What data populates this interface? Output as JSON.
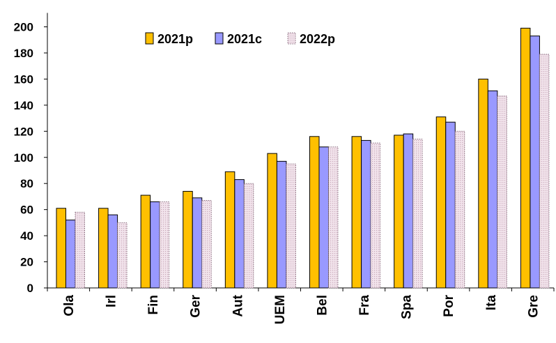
{
  "chart_data": {
    "type": "bar",
    "title": "",
    "xlabel": "",
    "ylabel": "",
    "ylim": [
      0,
      200
    ],
    "yticks": [
      0,
      20,
      40,
      60,
      80,
      100,
      120,
      140,
      160,
      180,
      200
    ],
    "grid": false,
    "legend_position": "top-center",
    "categories": [
      "Ola",
      "Irl",
      "Fin",
      "Ger",
      "Aut",
      "UEM",
      "Bel",
      "Fra",
      "Spa",
      "Por",
      "Ita",
      "Gre"
    ],
    "series": [
      {
        "name": "2021p",
        "color": "#FFC000",
        "pattern": "solid",
        "values": [
          61,
          61,
          71,
          74,
          89,
          103,
          116,
          116,
          117,
          131,
          160,
          199
        ]
      },
      {
        "name": "2021c",
        "color": "#9999FF",
        "pattern": "solid",
        "values": [
          52,
          56,
          66,
          69,
          83,
          97,
          108,
          113,
          118,
          127,
          151,
          193
        ]
      },
      {
        "name": "2022p",
        "color": "#E8D0DC",
        "pattern": "dotted",
        "values": [
          58,
          50,
          66,
          67,
          80,
          95,
          108,
          111,
          114,
          120,
          147,
          179
        ]
      }
    ]
  }
}
